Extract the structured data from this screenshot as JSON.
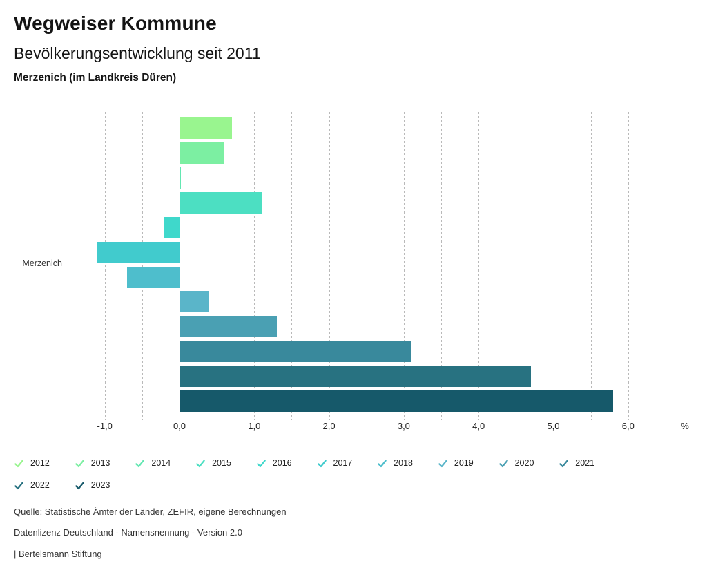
{
  "header": {
    "title": "Wegweiser Kommune",
    "subtitle": "Bevölkerungsentwicklung seit 2011",
    "region": "Merzenich (im Landkreis Düren)"
  },
  "chart_data": {
    "type": "bar",
    "orientation": "horizontal",
    "category_label": "Merzenich",
    "unit": "%",
    "series": [
      {
        "name": "2012",
        "value": 0.7,
        "color": "#99F58F"
      },
      {
        "name": "2013",
        "value": 0.6,
        "color": "#7CEFA2"
      },
      {
        "name": "2014",
        "value": 0.0,
        "color": "#63E7B2"
      },
      {
        "name": "2015",
        "value": 1.1,
        "color": "#4CDFC2"
      },
      {
        "name": "2016",
        "value": -0.2,
        "color": "#3FD8CB"
      },
      {
        "name": "2017",
        "value": -1.1,
        "color": "#41CBCD"
      },
      {
        "name": "2018",
        "value": -0.7,
        "color": "#4EBECC"
      },
      {
        "name": "2019",
        "value": 0.4,
        "color": "#5AB5C9"
      },
      {
        "name": "2020",
        "value": 1.3,
        "color": "#4AA0B3"
      },
      {
        "name": "2021",
        "value": 3.1,
        "color": "#39899C"
      },
      {
        "name": "2022",
        "value": 4.7,
        "color": "#287281"
      },
      {
        "name": "2023",
        "value": 5.8,
        "color": "#16596A"
      }
    ],
    "x_ticks": [
      {
        "value": -1,
        "label": "-1,0"
      },
      {
        "value": 0,
        "label": "0,0"
      },
      {
        "value": 1,
        "label": "1,0"
      },
      {
        "value": 2,
        "label": "2,0"
      },
      {
        "value": 3,
        "label": "3,0"
      },
      {
        "value": 4,
        "label": "4,0"
      },
      {
        "value": 5,
        "label": "5,0"
      },
      {
        "value": 6,
        "label": "6,0"
      }
    ],
    "axis_range": [
      -1.5,
      6.5
    ],
    "gridline_step": 0.5,
    "grid": true,
    "legend_position": "bottom"
  },
  "footer": {
    "line1": "Quelle: Statistische Ämter der Länder, ZEFIR, eigene Berechnungen",
    "line2": "Datenlizenz Deutschland - Namensnennung - Version 2.0",
    "line3": "| Bertelsmann Stiftung"
  }
}
